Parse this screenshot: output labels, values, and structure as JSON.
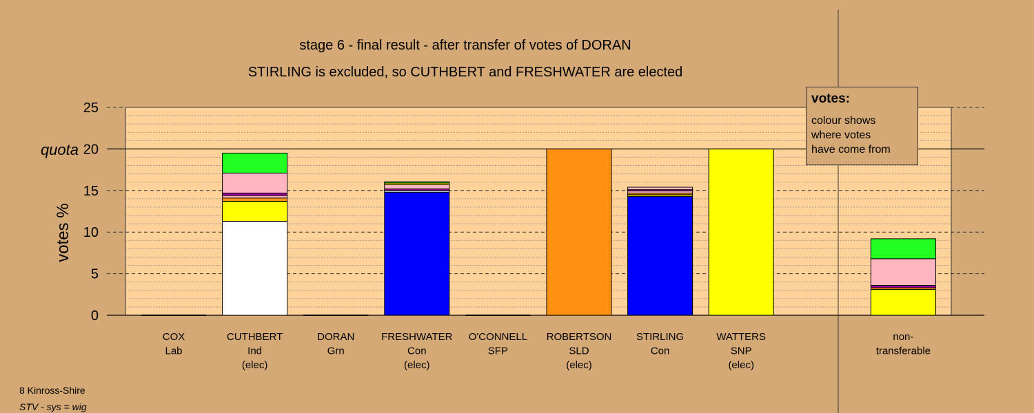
{
  "chart_data": {
    "type": "bar",
    "title": "stage 6 - final result - after transfer of votes of DORAN",
    "subtitle": "STIRLING is excluded, so CUTHBERT and FRESHWATER are elected",
    "ylabel": "votes %",
    "ylim": [
      0,
      25
    ],
    "yticks": [
      "0",
      "5",
      "10",
      "15",
      "20",
      "25"
    ],
    "quota_label": "quota",
    "quota_value": 20,
    "grid": true,
    "categories": [
      {
        "name": "COX",
        "party": "Lab",
        "status": ""
      },
      {
        "name": "CUTHBERT",
        "party": "Ind",
        "status": "(elec)"
      },
      {
        "name": "DORAN",
        "party": "Grn",
        "status": ""
      },
      {
        "name": "FRESHWATER",
        "party": "Con",
        "status": "(elec)"
      },
      {
        "name": "O'CONNELL",
        "party": "SFP",
        "status": ""
      },
      {
        "name": "ROBERTSON",
        "party": "SLD",
        "status": "(elec)"
      },
      {
        "name": "STIRLING",
        "party": "Con",
        "status": ""
      },
      {
        "name": "WATTERS",
        "party": "SNP",
        "status": "(elec)"
      },
      {
        "name": "",
        "party": "",
        "status": ""
      },
      {
        "name": "non-",
        "party": "transferable",
        "status": ""
      }
    ],
    "segments": [
      [],
      [
        {
          "value": 11.3,
          "color": "#ffffff"
        },
        {
          "value": 2.4,
          "color": "#ffff00"
        },
        {
          "value": 0.4,
          "color": "#ff9010"
        },
        {
          "value": 0.3,
          "color": "#ffb6c1"
        },
        {
          "value": 0.3,
          "color": "#9b009b"
        },
        {
          "value": 2.4,
          "color": "#ffb6c1"
        },
        {
          "value": 2.4,
          "color": "#22ff22"
        }
      ],
      [],
      [
        {
          "value": 14.8,
          "color": "#0000ff"
        },
        {
          "value": 0.2,
          "color": "#ffffff"
        },
        {
          "value": 0.2,
          "color": "#9b009b"
        },
        {
          "value": 0.5,
          "color": "#ffb6c1"
        },
        {
          "value": 0.2,
          "color": "#ffff00"
        },
        {
          "value": 0.15,
          "color": "#22ff22"
        }
      ],
      [],
      [
        {
          "value": 20.0,
          "color": "#ff9010"
        }
      ],
      [
        {
          "value": 14.3,
          "color": "#0000ff"
        },
        {
          "value": 0.2,
          "color": "#ffff00"
        },
        {
          "value": 0.2,
          "color": "#ff9010"
        },
        {
          "value": 0.25,
          "color": "#ffb6c1"
        },
        {
          "value": 0.15,
          "color": "#9b009b"
        },
        {
          "value": 0.3,
          "color": "#ffb6c1"
        }
      ],
      [
        {
          "value": 20.0,
          "color": "#ffff00"
        }
      ],
      [],
      [
        {
          "value": 3.1,
          "color": "#ffff00"
        },
        {
          "value": 0.2,
          "color": "#ff9010"
        },
        {
          "value": 0.3,
          "color": "#9b009b"
        },
        {
          "value": 3.2,
          "color": "#ffb6c1"
        },
        {
          "value": 2.4,
          "color": "#22ff22"
        }
      ]
    ],
    "colors": {
      "background": "#d4a976",
      "plot_area": "#ffd29a"
    }
  },
  "legend": {
    "title": "votes:",
    "lines": [
      "colour shows",
      "where votes",
      "have come from"
    ]
  },
  "footer": {
    "line1": "8 Kinross-Shire",
    "line2": "STV - sys = wig"
  }
}
